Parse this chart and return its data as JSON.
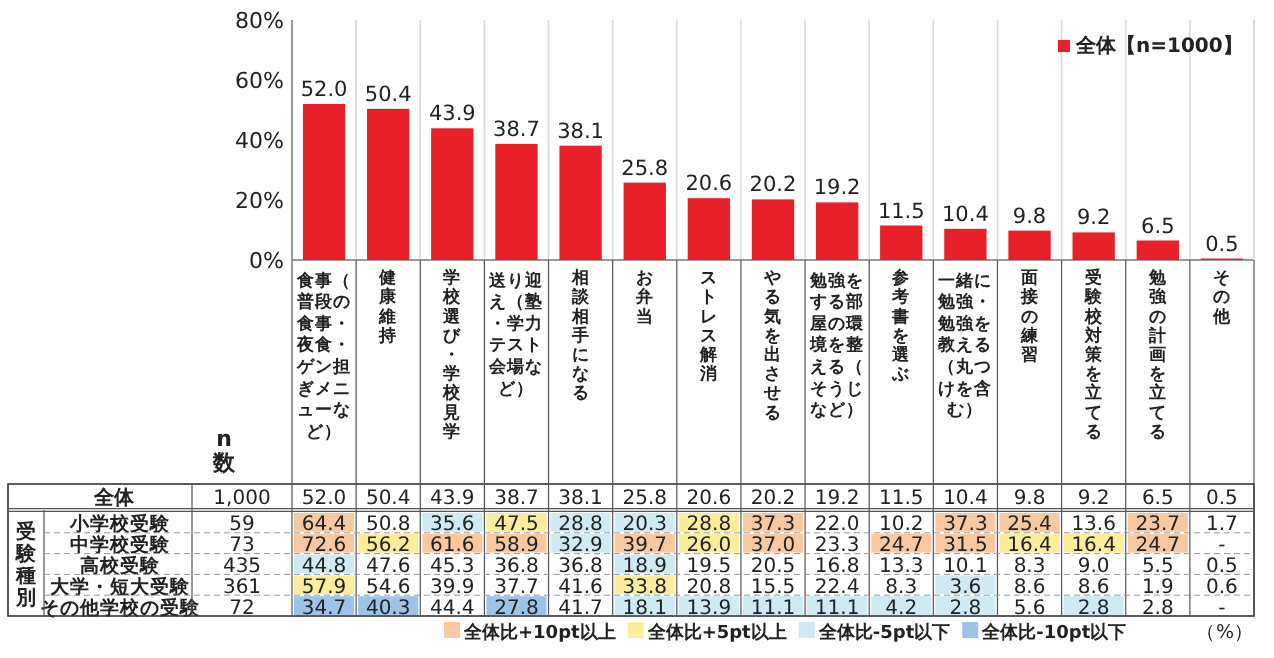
{
  "chart_data": [
    {
      "type": "bar",
      "categories": [
        "食事（普段の食事・夜食・ゲン担ぎメニューなど）",
        "健康維持",
        "学校選び・学校見学",
        "送り迎え（塾・学力テスト会場など）",
        "相談相手になる",
        "お弁当",
        "ストレス解消",
        "やる気を出させる",
        "勉強をする部屋の環境を整える（そうじなど）",
        "参考書を選ぶ",
        "一緒に勉強・勉強を教える（丸つけを含む）",
        "面接の練習",
        "受験校対策を立てる",
        "勉強の計画を立てる",
        "その他"
      ],
      "series": [
        {
          "name": "全体【n=1000】",
          "color": "#e8202a",
          "values": [
            52.0,
            50.4,
            43.9,
            38.7,
            38.1,
            25.8,
            20.6,
            20.2,
            19.2,
            11.5,
            10.4,
            9.8,
            9.2,
            6.5,
            0.5
          ],
          "value_labels": [
            "52.0",
            "50.4",
            "43.9",
            "38.7",
            "38.1",
            "25.8",
            "20.6",
            "20.2",
            "19.2",
            "11.5",
            "10.4",
            "9.8",
            "9.2",
            "6.5",
            "0.5"
          ]
        }
      ],
      "ylim": [
        0,
        80
      ],
      "yticks": [
        {
          "value": 0,
          "label": "0%"
        },
        {
          "value": 20,
          "label": "20%"
        },
        {
          "value": 40,
          "label": "40%"
        },
        {
          "value": 60,
          "label": "60%"
        },
        {
          "value": 80,
          "label": "80%"
        }
      ],
      "grid": "x",
      "legend": "top right",
      "annotations": [
        "全体",
        "1,000",
        "n数"
      ]
    },
    {
      "type": "heatmap",
      "categories": [
        null,
        null,
        null,
        null,
        null,
        null,
        null,
        null,
        null,
        null,
        null,
        null,
        null,
        null,
        null
      ],
      "y_categories": [
        "小学校受験",
        "中学校受験",
        "高校受験",
        "大学・短大受験",
        "その他学校の受験"
      ],
      "y2_categories": [
        "59",
        "73",
        "435",
        "361",
        "72"
      ],
      "cells": [
        [
          64.4,
          50.8,
          35.6,
          47.5,
          28.8,
          20.3,
          28.8,
          37.3,
          22.0,
          10.2,
          37.3,
          25.4,
          13.6,
          23.7,
          1.7
        ],
        [
          72.6,
          56.2,
          61.6,
          58.9,
          32.9,
          39.7,
          26.0,
          37.0,
          23.3,
          24.7,
          31.5,
          16.4,
          16.4,
          24.7,
          null
        ],
        [
          44.8,
          47.6,
          45.3,
          36.8,
          36.8,
          18.9,
          19.5,
          20.5,
          16.8,
          13.3,
          10.1,
          8.3,
          9.0,
          5.5,
          0.5
        ],
        [
          57.9,
          54.6,
          39.9,
          37.7,
          41.6,
          33.8,
          20.8,
          15.5,
          22.4,
          8.3,
          3.6,
          8.6,
          8.6,
          1.9,
          0.6
        ],
        [
          34.7,
          40.3,
          44.4,
          27.8,
          41.7,
          18.1,
          13.9,
          11.1,
          11.1,
          4.2,
          2.8,
          5.6,
          2.8,
          2.8,
          null
        ]
      ],
      "cell_labels": [
        [
          "64.4",
          "50.8",
          "35.6",
          "47.5",
          "28.8",
          "20.3",
          "28.8",
          "37.3",
          "22.0",
          "10.2",
          "37.3",
          "25.4",
          "13.6",
          "23.7",
          "1.7"
        ],
        [
          "72.6",
          "56.2",
          "61.6",
          "58.9",
          "32.9",
          "39.7",
          "26.0",
          "37.0",
          "23.3",
          "24.7",
          "31.5",
          "16.4",
          "16.4",
          "24.7",
          "-"
        ],
        [
          "44.8",
          "47.6",
          "45.3",
          "36.8",
          "36.8",
          "18.9",
          "19.5",
          "20.5",
          "16.8",
          "13.3",
          "10.1",
          "8.3",
          "9.0",
          "5.5",
          "0.5"
        ],
        [
          "57.9",
          "54.6",
          "39.9",
          "37.7",
          "41.6",
          "33.8",
          "20.8",
          "15.5",
          "22.4",
          "8.3",
          "3.6",
          "8.6",
          "8.6",
          "1.9",
          "0.6"
        ],
        [
          "34.7",
          "40.3",
          "44.4",
          "27.8",
          "41.7",
          "18.1",
          "13.9",
          "11.1",
          "11.1",
          "4.2",
          "2.8",
          "5.6",
          "2.8",
          "2.8",
          "-"
        ]
      ],
      "colors": [
        "#f8c9a0",
        "#faee9c",
        "#cfeaf3",
        "#9fc3e6"
      ],
      "annotations": [
        "全体比+10pt以上",
        "全体比+5pt以上",
        "全体比-5pt以下",
        "全体比-10pt以下",
        "受験種別",
        "（%）"
      ]
    }
  ]
}
